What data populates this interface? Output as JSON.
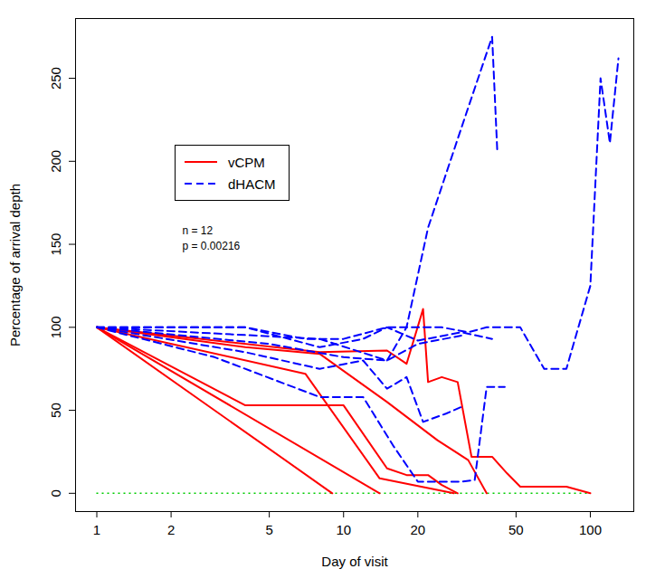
{
  "chart_data": {
    "type": "line",
    "x_label": "Day of visit",
    "y_label": "Percentage of arrival depth",
    "log": "x",
    "grid": false,
    "legend": "top-left",
    "xlim": [
      0.82,
      150
    ],
    "xticks": [
      1,
      2,
      5,
      10,
      20,
      50,
      100
    ],
    "ylim": [
      -11,
      286
    ],
    "yticks": [
      0,
      50,
      100,
      150,
      200,
      250
    ],
    "annotations": [
      {
        "text": "n = 12"
      },
      {
        "text": "p = 0.00216"
      }
    ],
    "reference_lines": [
      {
        "y": 0,
        "color": "#00cc00",
        "line_style": "dotted"
      }
    ],
    "series": [
      {
        "name": "vCPM",
        "color": "#ff0000",
        "line_style": "solid",
        "lines": [
          {
            "x": [
              1,
              9
            ],
            "values": [
              100,
              0
            ]
          },
          {
            "x": [
              1,
              14
            ],
            "values": [
              100,
              0
            ]
          },
          {
            "x": [
              1,
              4,
              10,
              15,
              18,
              22,
              25,
              29
            ],
            "values": [
              100,
              53,
              53,
              15,
              11,
              11,
              5,
              0
            ]
          },
          {
            "x": [
              1,
              7,
              14,
              28
            ],
            "values": [
              100,
              72,
              9,
              0
            ]
          },
          {
            "x": [
              1,
              8,
              15,
              18,
              21,
              22,
              25,
              29,
              33,
              40,
              46,
              52,
              80,
              100
            ],
            "values": [
              100,
              85,
              86,
              78,
              111,
              67,
              70,
              67,
              22,
              22,
              12,
              4,
              4,
              0
            ]
          },
          {
            "x": [
              1,
              4,
              8,
              15,
              24,
              32,
              38
            ],
            "values": [
              100,
              88,
              84,
              55,
              32,
              20,
              0
            ]
          }
        ]
      },
      {
        "name": "dHACM",
        "color": "#0000ff",
        "line_style": "dashed",
        "lines": [
          {
            "x": [
              1,
              4,
              7,
              10,
              15,
              25,
              32,
              38,
              52,
              65,
              80,
              100,
              110,
              120,
              130
            ],
            "values": [
              100,
              100,
              93,
              93,
              100,
              100,
              97,
              100,
              100,
              75,
              75,
              125,
              250,
              211,
              262
            ]
          },
          {
            "x": [
              1,
              8,
              15,
              18,
              22,
              30,
              40,
              42
            ],
            "values": [
              100,
              93,
              80,
              100,
              160,
              220,
              275,
              205
            ]
          },
          {
            "x": [
              1,
              4,
              8,
              12,
              15,
              20,
              30,
              40
            ],
            "values": [
              100,
              100,
              88,
              93,
              100,
              92,
              97,
              93
            ]
          },
          {
            "x": [
              1,
              5,
              10,
              15,
              20,
              30
            ],
            "values": [
              100,
              90,
              82,
              80,
              90,
              95
            ]
          },
          {
            "x": [
              1,
              4,
              8,
              12,
              15,
              18,
              21,
              26,
              30
            ],
            "values": [
              100,
              85,
              75,
              80,
              63,
              70,
              43,
              48,
              52
            ]
          },
          {
            "x": [
              1,
              3,
              8,
              12,
              16,
              20,
              30,
              34,
              38,
              45
            ],
            "values": [
              100,
              82,
              58,
              58,
              28,
              7,
              7,
              8,
              64,
              64
            ]
          }
        ]
      }
    ]
  }
}
